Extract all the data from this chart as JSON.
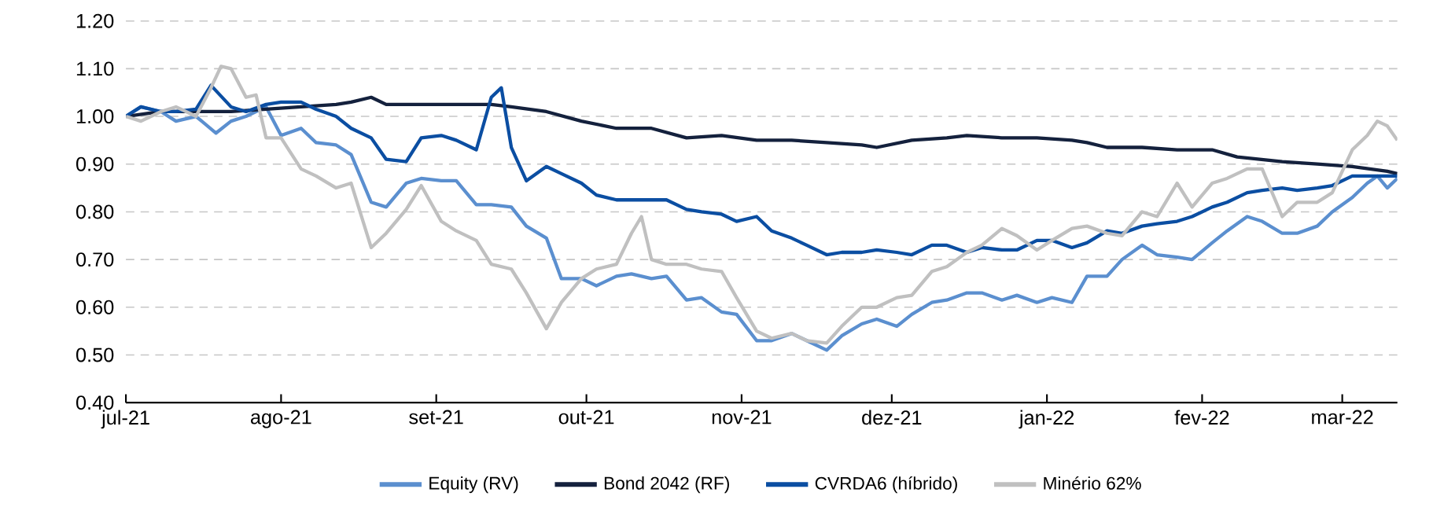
{
  "chart_data": {
    "type": "line",
    "xlim": [
      "2021-07-01",
      "2022-03-12"
    ],
    "xticks": [
      {
        "value": "2021-07-01",
        "label": "jul-21"
      },
      {
        "value": "2021-08-01",
        "label": "ago-21"
      },
      {
        "value": "2021-09-01",
        "label": "set-21"
      },
      {
        "value": "2021-10-01",
        "label": "out-21"
      },
      {
        "value": "2021-11-01",
        "label": "nov-21"
      },
      {
        "value": "2021-12-01",
        "label": "dez-21"
      },
      {
        "value": "2022-01-01",
        "label": "jan-22"
      },
      {
        "value": "2022-02-01",
        "label": "fev-22"
      },
      {
        "value": "2022-03-01",
        "label": "mar-22"
      }
    ],
    "ylim": [
      0.4,
      1.2
    ],
    "yticks": [
      {
        "value": 0.4,
        "label": "0.40"
      },
      {
        "value": 0.5,
        "label": "0.50"
      },
      {
        "value": 0.6,
        "label": "0.60"
      },
      {
        "value": 0.7,
        "label": "0.70"
      },
      {
        "value": 0.8,
        "label": "0.80"
      },
      {
        "value": 0.9,
        "label": "0.90"
      },
      {
        "value": 1.0,
        "label": "1.00"
      },
      {
        "value": 1.1,
        "label": "1.10"
      },
      {
        "value": 1.2,
        "label": "1.20"
      }
    ],
    "grid": "y",
    "legend": "bottom",
    "marker": "none",
    "line_style": "solid",
    "series": [
      {
        "name": "Equity (RV)",
        "color": "#5b8fcf",
        "x": [
          "2021-07-01",
          "2021-07-04",
          "2021-07-08",
          "2021-07-11",
          "2021-07-15",
          "2021-07-19",
          "2021-07-22",
          "2021-07-25",
          "2021-07-29",
          "2021-08-01",
          "2021-08-05",
          "2021-08-08",
          "2021-08-12",
          "2021-08-15",
          "2021-08-19",
          "2021-08-22",
          "2021-08-26",
          "2021-08-29",
          "2021-09-02",
          "2021-09-05",
          "2021-09-09",
          "2021-09-12",
          "2021-09-16",
          "2021-09-19",
          "2021-09-23",
          "2021-09-26",
          "2021-09-30",
          "2021-10-03",
          "2021-10-07",
          "2021-10-10",
          "2021-10-14",
          "2021-10-17",
          "2021-10-21",
          "2021-10-24",
          "2021-10-28",
          "2021-10-31",
          "2021-11-04",
          "2021-11-07",
          "2021-11-11",
          "2021-11-14",
          "2021-11-18",
          "2021-11-21",
          "2021-11-25",
          "2021-11-28",
          "2021-12-02",
          "2021-12-05",
          "2021-12-09",
          "2021-12-12",
          "2021-12-16",
          "2021-12-19",
          "2021-12-23",
          "2021-12-26",
          "2021-12-30",
          "2022-01-02",
          "2022-01-06",
          "2022-01-09",
          "2022-01-13",
          "2022-01-16",
          "2022-01-20",
          "2022-01-23",
          "2022-01-27",
          "2022-01-30",
          "2022-02-03",
          "2022-02-06",
          "2022-02-10",
          "2022-02-13",
          "2022-02-17",
          "2022-02-20",
          "2022-02-24",
          "2022-02-27",
          "2022-03-03",
          "2022-03-06",
          "2022-03-08",
          "2022-03-10",
          "2022-03-12"
        ],
        "values": [
          1.0,
          1.02,
          1.01,
          0.99,
          1.0,
          0.965,
          0.99,
          1.0,
          1.02,
          0.96,
          0.975,
          0.945,
          0.94,
          0.92,
          0.82,
          0.81,
          0.86,
          0.87,
          0.865,
          0.865,
          0.815,
          0.815,
          0.81,
          0.77,
          0.745,
          0.66,
          0.66,
          0.645,
          0.665,
          0.67,
          0.66,
          0.665,
          0.615,
          0.62,
          0.59,
          0.585,
          0.53,
          0.53,
          0.545,
          0.53,
          0.51,
          0.54,
          0.565,
          0.575,
          0.56,
          0.585,
          0.61,
          0.615,
          0.63,
          0.63,
          0.615,
          0.625,
          0.61,
          0.62,
          0.61,
          0.665,
          0.665,
          0.7,
          0.73,
          0.71,
          0.705,
          0.7,
          0.735,
          0.76,
          0.79,
          0.78,
          0.755,
          0.755,
          0.77,
          0.8,
          0.83,
          0.86,
          0.875,
          0.85,
          0.87
        ]
      },
      {
        "name": "Bond 2042 (RF)",
        "color": "#14213d",
        "x": [
          "2021-07-01",
          "2021-07-08",
          "2021-07-15",
          "2021-07-22",
          "2021-07-29",
          "2021-08-05",
          "2021-08-12",
          "2021-08-15",
          "2021-08-19",
          "2021-08-22",
          "2021-08-29",
          "2021-09-05",
          "2021-09-12",
          "2021-09-16",
          "2021-09-23",
          "2021-09-30",
          "2021-10-07",
          "2021-10-14",
          "2021-10-21",
          "2021-10-28",
          "2021-11-04",
          "2021-11-11",
          "2021-11-18",
          "2021-11-25",
          "2021-11-28",
          "2021-12-05",
          "2021-12-12",
          "2021-12-16",
          "2021-12-23",
          "2021-12-30",
          "2022-01-06",
          "2022-01-09",
          "2022-01-13",
          "2022-01-20",
          "2022-01-27",
          "2022-02-03",
          "2022-02-08",
          "2022-02-17",
          "2022-02-24",
          "2022-03-03",
          "2022-03-10",
          "2022-03-12"
        ],
        "values": [
          1.0,
          1.01,
          1.01,
          1.01,
          1.015,
          1.02,
          1.025,
          1.03,
          1.04,
          1.025,
          1.025,
          1.025,
          1.025,
          1.02,
          1.01,
          0.99,
          0.975,
          0.975,
          0.955,
          0.96,
          0.95,
          0.95,
          0.945,
          0.94,
          0.935,
          0.95,
          0.955,
          0.96,
          0.955,
          0.955,
          0.95,
          0.945,
          0.935,
          0.935,
          0.93,
          0.93,
          0.915,
          0.905,
          0.9,
          0.895,
          0.885,
          0.88
        ]
      },
      {
        "name": "CVRDA6 (híbrido)",
        "color": "#0b4ea2",
        "x": [
          "2021-07-01",
          "2021-07-04",
          "2021-07-08",
          "2021-07-11",
          "2021-07-15",
          "2021-07-18",
          "2021-07-22",
          "2021-07-25",
          "2021-07-29",
          "2021-08-01",
          "2021-08-05",
          "2021-08-08",
          "2021-08-12",
          "2021-08-15",
          "2021-08-19",
          "2021-08-22",
          "2021-08-26",
          "2021-08-29",
          "2021-09-02",
          "2021-09-05",
          "2021-09-09",
          "2021-09-12",
          "2021-09-14",
          "2021-09-16",
          "2021-09-19",
          "2021-09-23",
          "2021-09-26",
          "2021-09-30",
          "2021-10-03",
          "2021-10-07",
          "2021-10-10",
          "2021-10-14",
          "2021-10-17",
          "2021-10-21",
          "2021-10-24",
          "2021-10-28",
          "2021-10-31",
          "2021-11-04",
          "2021-11-07",
          "2021-11-11",
          "2021-11-14",
          "2021-11-18",
          "2021-11-21",
          "2021-11-25",
          "2021-11-28",
          "2021-12-02",
          "2021-12-05",
          "2021-12-09",
          "2021-12-12",
          "2021-12-16",
          "2021-12-19",
          "2021-12-23",
          "2021-12-26",
          "2021-12-30",
          "2022-01-02",
          "2022-01-06",
          "2022-01-09",
          "2022-01-13",
          "2022-01-16",
          "2022-01-20",
          "2022-01-23",
          "2022-01-27",
          "2022-01-30",
          "2022-02-03",
          "2022-02-06",
          "2022-02-10",
          "2022-02-13",
          "2022-02-17",
          "2022-02-20",
          "2022-02-24",
          "2022-02-27",
          "2022-03-03",
          "2022-03-06",
          "2022-03-10",
          "2022-03-12"
        ],
        "values": [
          1.0,
          1.02,
          1.01,
          1.01,
          1.015,
          1.065,
          1.02,
          1.01,
          1.025,
          1.03,
          1.03,
          1.015,
          1.0,
          0.975,
          0.955,
          0.91,
          0.905,
          0.955,
          0.96,
          0.95,
          0.93,
          1.04,
          1.06,
          0.935,
          0.865,
          0.895,
          0.88,
          0.86,
          0.835,
          0.825,
          0.825,
          0.825,
          0.825,
          0.805,
          0.8,
          0.795,
          0.78,
          0.79,
          0.76,
          0.745,
          0.73,
          0.71,
          0.715,
          0.715,
          0.72,
          0.715,
          0.71,
          0.73,
          0.73,
          0.715,
          0.725,
          0.72,
          0.72,
          0.74,
          0.74,
          0.725,
          0.735,
          0.76,
          0.755,
          0.77,
          0.775,
          0.78,
          0.79,
          0.81,
          0.82,
          0.84,
          0.845,
          0.85,
          0.845,
          0.85,
          0.855,
          0.875,
          0.875,
          0.875,
          0.875
        ]
      },
      {
        "name": "Minério 62%",
        "color": "#c0c0c0",
        "x": [
          "2021-07-01",
          "2021-07-04",
          "2021-07-08",
          "2021-07-11",
          "2021-07-15",
          "2021-07-18",
          "2021-07-20",
          "2021-07-22",
          "2021-07-25",
          "2021-07-27",
          "2021-07-29",
          "2021-08-01",
          "2021-08-05",
          "2021-08-08",
          "2021-08-12",
          "2021-08-15",
          "2021-08-19",
          "2021-08-22",
          "2021-08-26",
          "2021-08-29",
          "2021-09-02",
          "2021-09-05",
          "2021-09-09",
          "2021-09-12",
          "2021-09-16",
          "2021-09-19",
          "2021-09-23",
          "2021-09-26",
          "2021-09-30",
          "2021-10-03",
          "2021-10-07",
          "2021-10-10",
          "2021-10-12",
          "2021-10-14",
          "2021-10-17",
          "2021-10-21",
          "2021-10-24",
          "2021-10-28",
          "2021-10-31",
          "2021-11-04",
          "2021-11-07",
          "2021-11-11",
          "2021-11-14",
          "2021-11-18",
          "2021-11-21",
          "2021-11-25",
          "2021-11-28",
          "2021-12-02",
          "2021-12-05",
          "2021-12-09",
          "2021-12-12",
          "2021-12-16",
          "2021-12-19",
          "2021-12-23",
          "2021-12-26",
          "2021-12-30",
          "2022-01-02",
          "2022-01-06",
          "2022-01-09",
          "2022-01-13",
          "2022-01-16",
          "2022-01-20",
          "2022-01-23",
          "2022-01-27",
          "2022-01-30",
          "2022-02-03",
          "2022-02-06",
          "2022-02-10",
          "2022-02-13",
          "2022-02-17",
          "2022-02-20",
          "2022-02-24",
          "2022-02-27",
          "2022-03-03",
          "2022-03-06",
          "2022-03-08",
          "2022-03-10",
          "2022-03-12"
        ],
        "values": [
          1.0,
          0.99,
          1.01,
          1.02,
          1.0,
          1.06,
          1.105,
          1.1,
          1.04,
          1.045,
          0.955,
          0.955,
          0.89,
          0.875,
          0.85,
          0.86,
          0.725,
          0.755,
          0.805,
          0.855,
          0.78,
          0.76,
          0.74,
          0.69,
          0.68,
          0.63,
          0.555,
          0.61,
          0.66,
          0.68,
          0.69,
          0.755,
          0.79,
          0.7,
          0.69,
          0.69,
          0.68,
          0.675,
          0.62,
          0.55,
          0.535,
          0.545,
          0.53,
          0.525,
          0.56,
          0.6,
          0.6,
          0.62,
          0.625,
          0.675,
          0.685,
          0.715,
          0.73,
          0.765,
          0.75,
          0.72,
          0.74,
          0.765,
          0.77,
          0.755,
          0.75,
          0.8,
          0.79,
          0.86,
          0.81,
          0.86,
          0.87,
          0.89,
          0.89,
          0.79,
          0.82,
          0.82,
          0.84,
          0.93,
          0.96,
          0.99,
          0.98,
          0.95
        ]
      }
    ]
  }
}
